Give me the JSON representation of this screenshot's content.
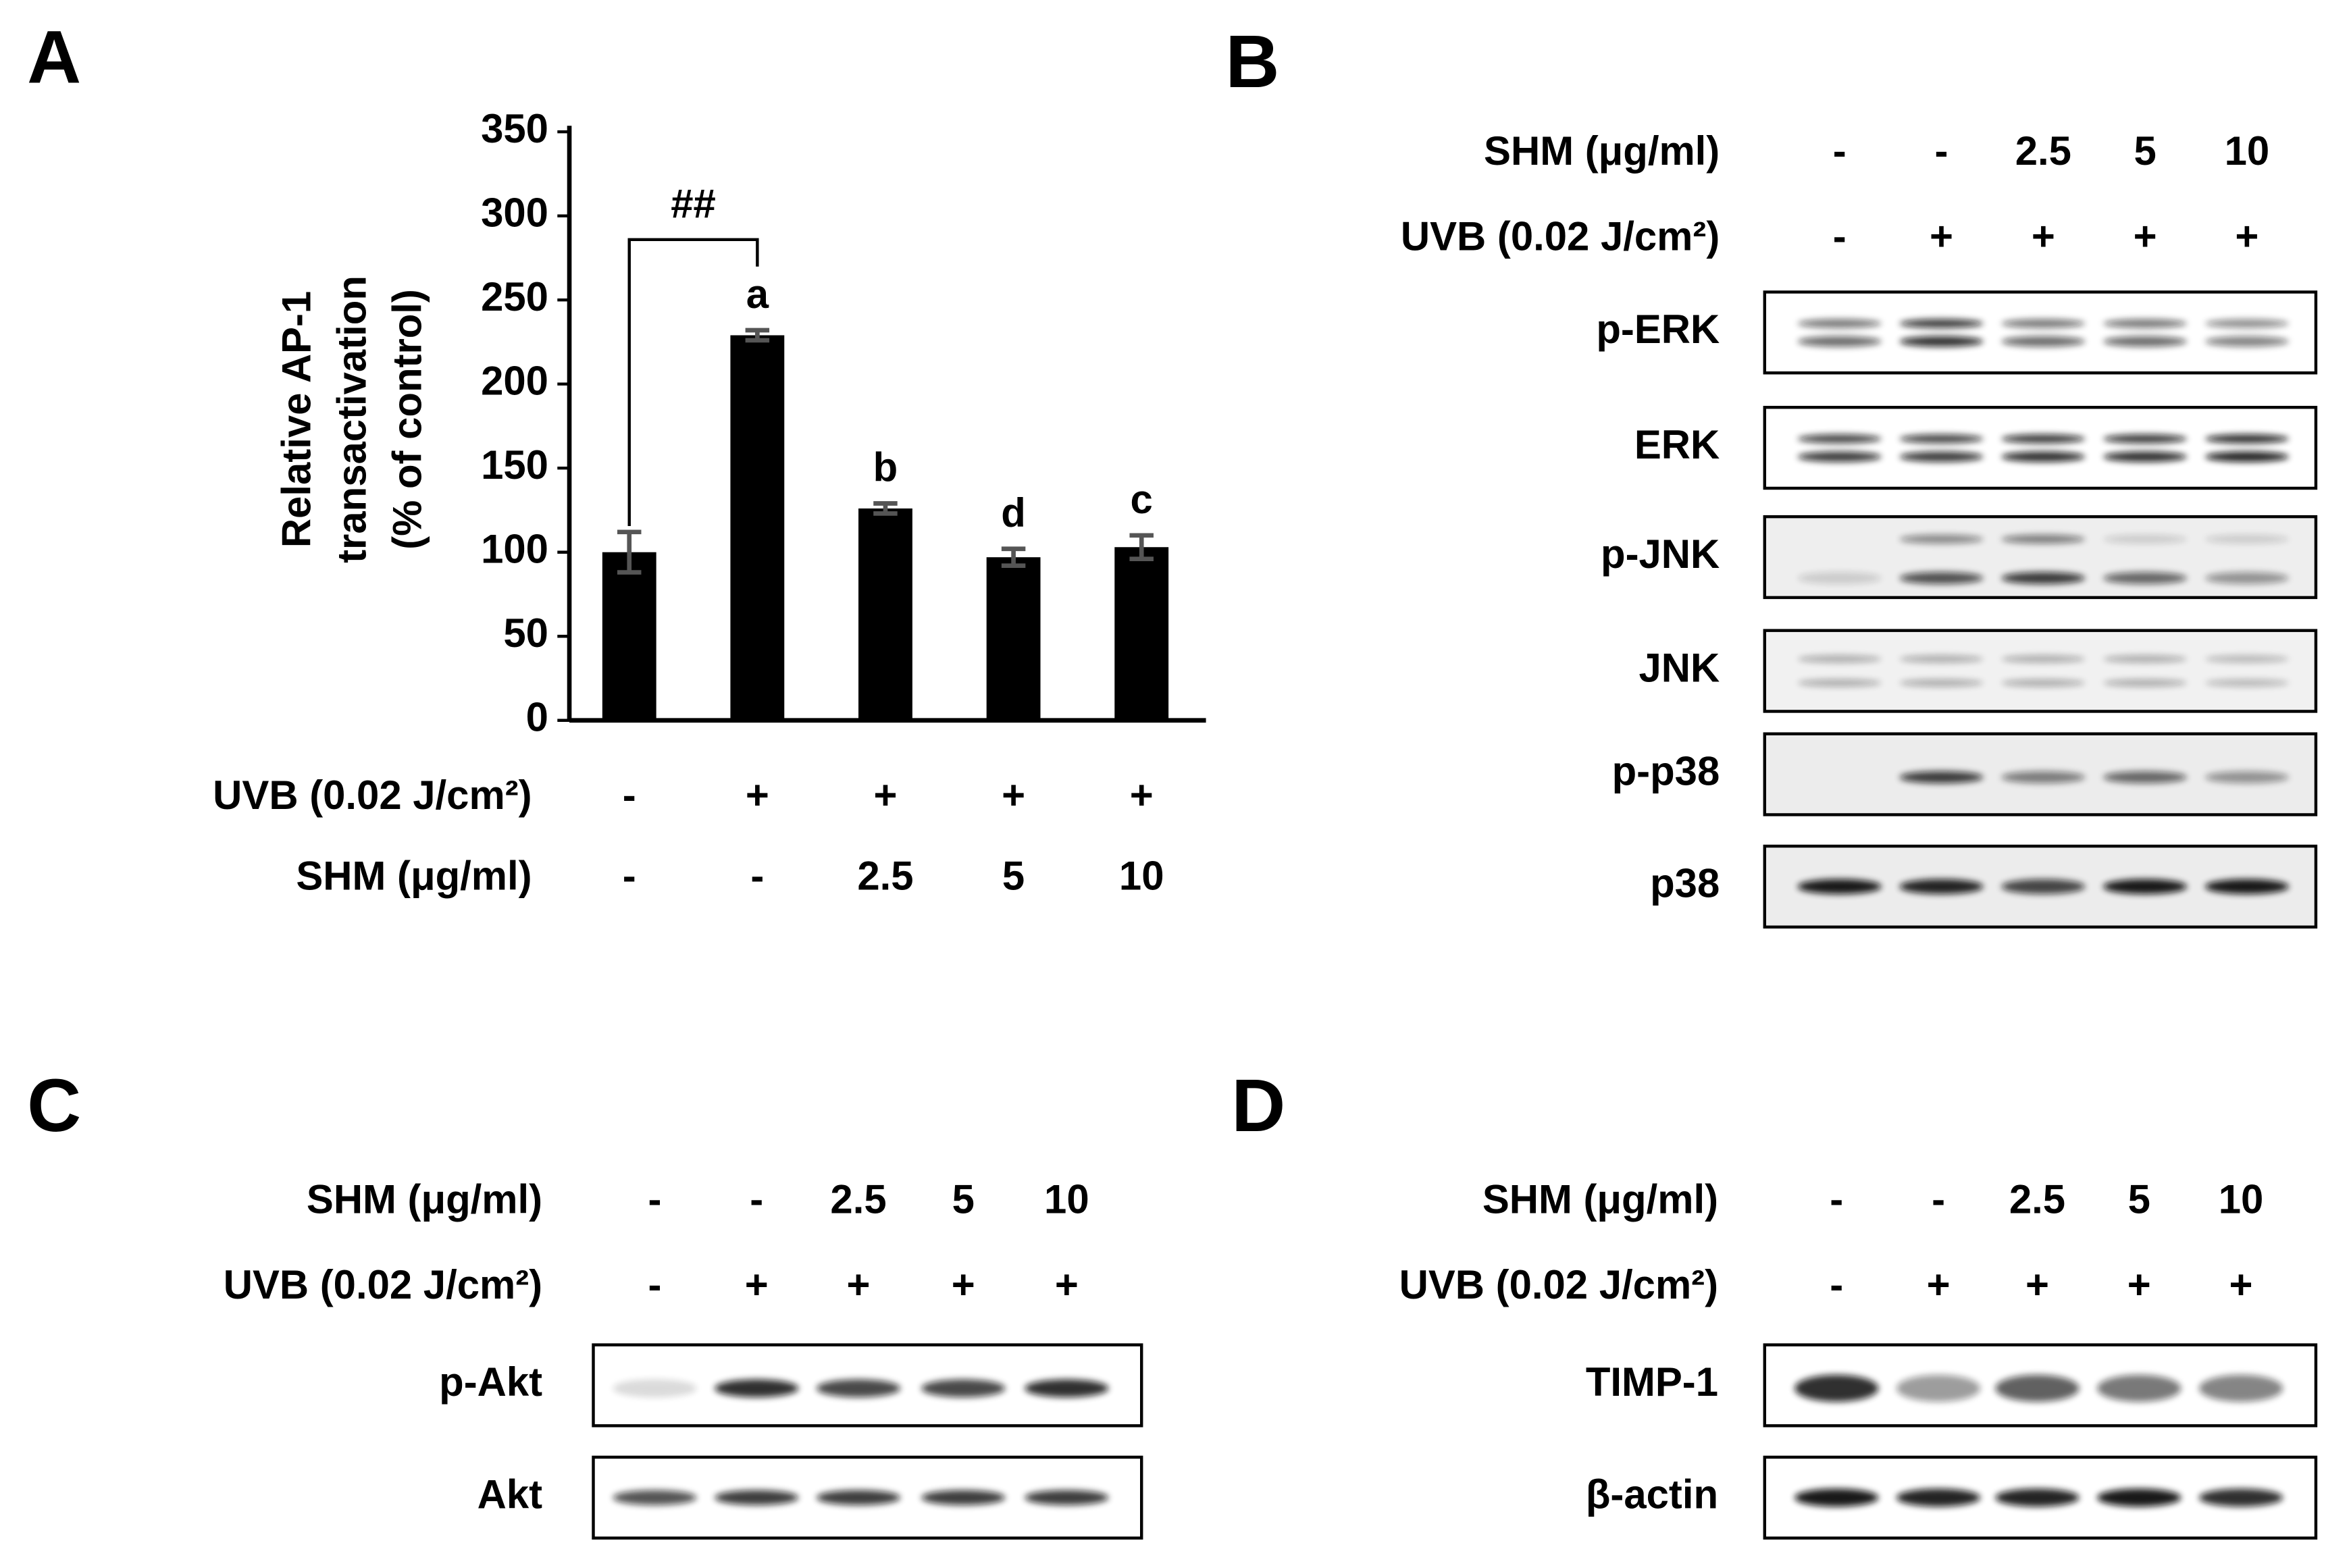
{
  "chart_data": {
    "type": "bar",
    "panel_label": "A",
    "ylabel": [
      "Relative AP-1",
      "transactivation",
      "(% of control)"
    ],
    "conditions": [
      {
        "label": "UVB (0.02 J/cm²)",
        "values": [
          "-",
          "+",
          "+",
          "+",
          "+"
        ]
      },
      {
        "label": "SHM (μg/ml)",
        "values": [
          "-",
          "-",
          "2.5",
          "5",
          "10"
        ]
      }
    ],
    "values": [
      100,
      229,
      126,
      97,
      103
    ],
    "errors": [
      12,
      3,
      3,
      5,
      7
    ],
    "significance_letters": [
      null,
      "a",
      "b",
      "d",
      "c"
    ],
    "annotation": "##",
    "color": "#000000",
    "ylim": [
      0,
      350
    ],
    "yticks": [
      0,
      50,
      100,
      150,
      200,
      250,
      300,
      350
    ]
  },
  "panels": [
    {
      "label": "B",
      "conditions": [
        {
          "label": "SHM (μg/ml)",
          "values": [
            "-",
            "-",
            "2.5",
            "5",
            "10"
          ]
        },
        {
          "label": "UVB (0.02 J/cm²)",
          "values": [
            "-",
            "+",
            "+",
            "+",
            "+"
          ]
        }
      ],
      "blots": [
        "p-ERK",
        "ERK",
        "p-JNK",
        "JNK",
        "p-p38",
        "p38"
      ]
    },
    {
      "label": "C",
      "conditions": [
        {
          "label": "SHM (μg/ml)",
          "values": [
            "-",
            "-",
            "2.5",
            "5",
            "10"
          ]
        },
        {
          "label": "UVB (0.02 J/cm²)",
          "values": [
            "-",
            "+",
            "+",
            "+",
            "+"
          ]
        }
      ],
      "blots": [
        "p-Akt",
        "Akt"
      ]
    },
    {
      "label": "D",
      "conditions": [
        {
          "label": "SHM (μg/ml)",
          "values": [
            "-",
            "-",
            "2.5",
            "5",
            "10"
          ]
        },
        {
          "label": "UVB (0.02 J/cm²)",
          "values": [
            "-",
            "+",
            "+",
            "+",
            "+"
          ]
        }
      ],
      "blots": [
        "TIMP-1",
        "β-actin"
      ]
    }
  ]
}
